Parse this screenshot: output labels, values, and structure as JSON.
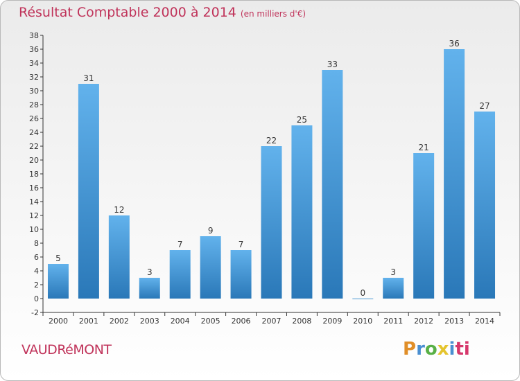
{
  "header": {
    "title": "Résultat Comptable 2000 à 2014",
    "subtitle": "(en milliers d'€)"
  },
  "footer": {
    "city": "VAUDRéMONT",
    "logo_parts": [
      "P",
      "r",
      "o",
      "x",
      "i",
      "ti"
    ]
  },
  "colors": {
    "title": "#c0335a",
    "bar_light": "#62b2ec",
    "bar_dark": "#2a78b8"
  },
  "chart_data": {
    "type": "bar",
    "title": "Résultat Comptable 2000 à 2014",
    "subtitle": "(en milliers d'€)",
    "xlabel": "",
    "ylabel": "",
    "categories": [
      "2000",
      "2001",
      "2002",
      "2003",
      "2004",
      "2005",
      "2006",
      "2007",
      "2008",
      "2009",
      "2010",
      "2011",
      "2012",
      "2013",
      "2014"
    ],
    "values": [
      5,
      31,
      12,
      3,
      7,
      9,
      7,
      22,
      25,
      33,
      0,
      3,
      21,
      36,
      27
    ],
    "data_labels": [
      "5",
      "31",
      "12",
      "3",
      "7",
      "9",
      "7",
      "22",
      "25",
      "33",
      "0",
      "3",
      "21",
      "36",
      "27"
    ],
    "ylim": [
      -2,
      38
    ],
    "yticks": [
      -2,
      0,
      2,
      4,
      6,
      8,
      10,
      12,
      14,
      16,
      18,
      20,
      22,
      24,
      26,
      28,
      30,
      32,
      34,
      36,
      38
    ],
    "grid": false,
    "legend": "none"
  }
}
